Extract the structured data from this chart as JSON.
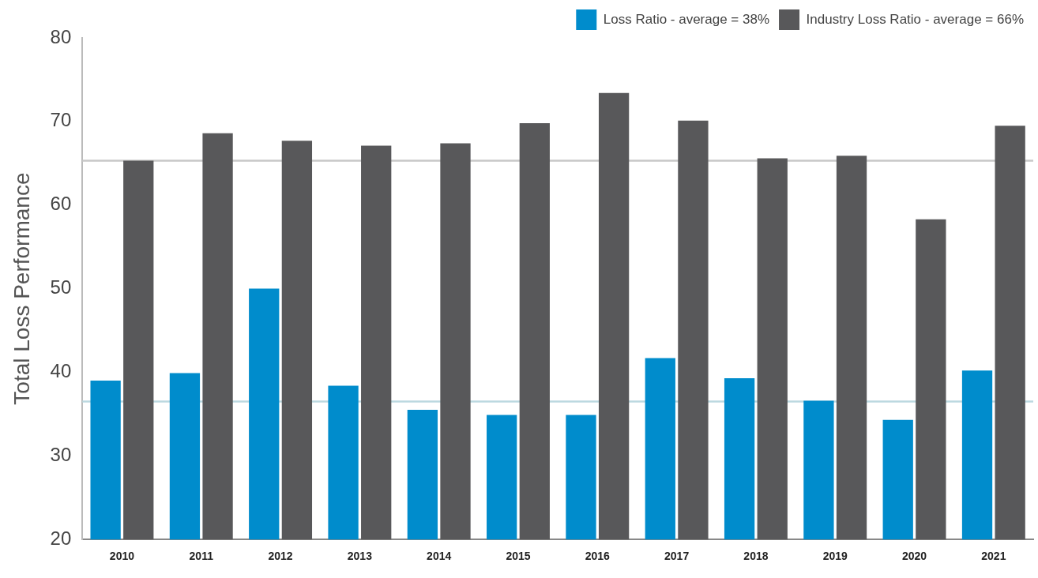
{
  "chart_data": {
    "type": "bar",
    "categories": [
      "2010",
      "2011",
      "2012",
      "2013",
      "2014",
      "2015",
      "2016",
      "2017",
      "2018",
      "2019",
      "2020",
      "2021"
    ],
    "ylabel": "Total Loss Performance",
    "series": [
      {
        "name": "Loss Ratio - average = 38%",
        "color": "#008ccc",
        "values": [
          39.0,
          39.9,
          50.0,
          38.4,
          35.5,
          34.9,
          34.9,
          41.7,
          39.3,
          36.6,
          34.3,
          40.2
        ]
      },
      {
        "name": "Industry Loss Ratio - average = 66%",
        "color": "#58585a",
        "values": [
          65.3,
          68.6,
          67.7,
          67.1,
          67.4,
          69.8,
          73.4,
          70.1,
          65.6,
          65.9,
          58.3,
          69.5
        ]
      }
    ],
    "ylim": [
      20,
      80
    ],
    "yticks": [
      20,
      30,
      40,
      50,
      60,
      70,
      80
    ],
    "ref_lines": [
      {
        "axis": "y",
        "value": 65.3,
        "color": "#c8c8c8"
      },
      {
        "axis": "y",
        "value": 36.5,
        "color": "#bcd9e0"
      }
    ],
    "grid": false,
    "legend": "top right"
  }
}
